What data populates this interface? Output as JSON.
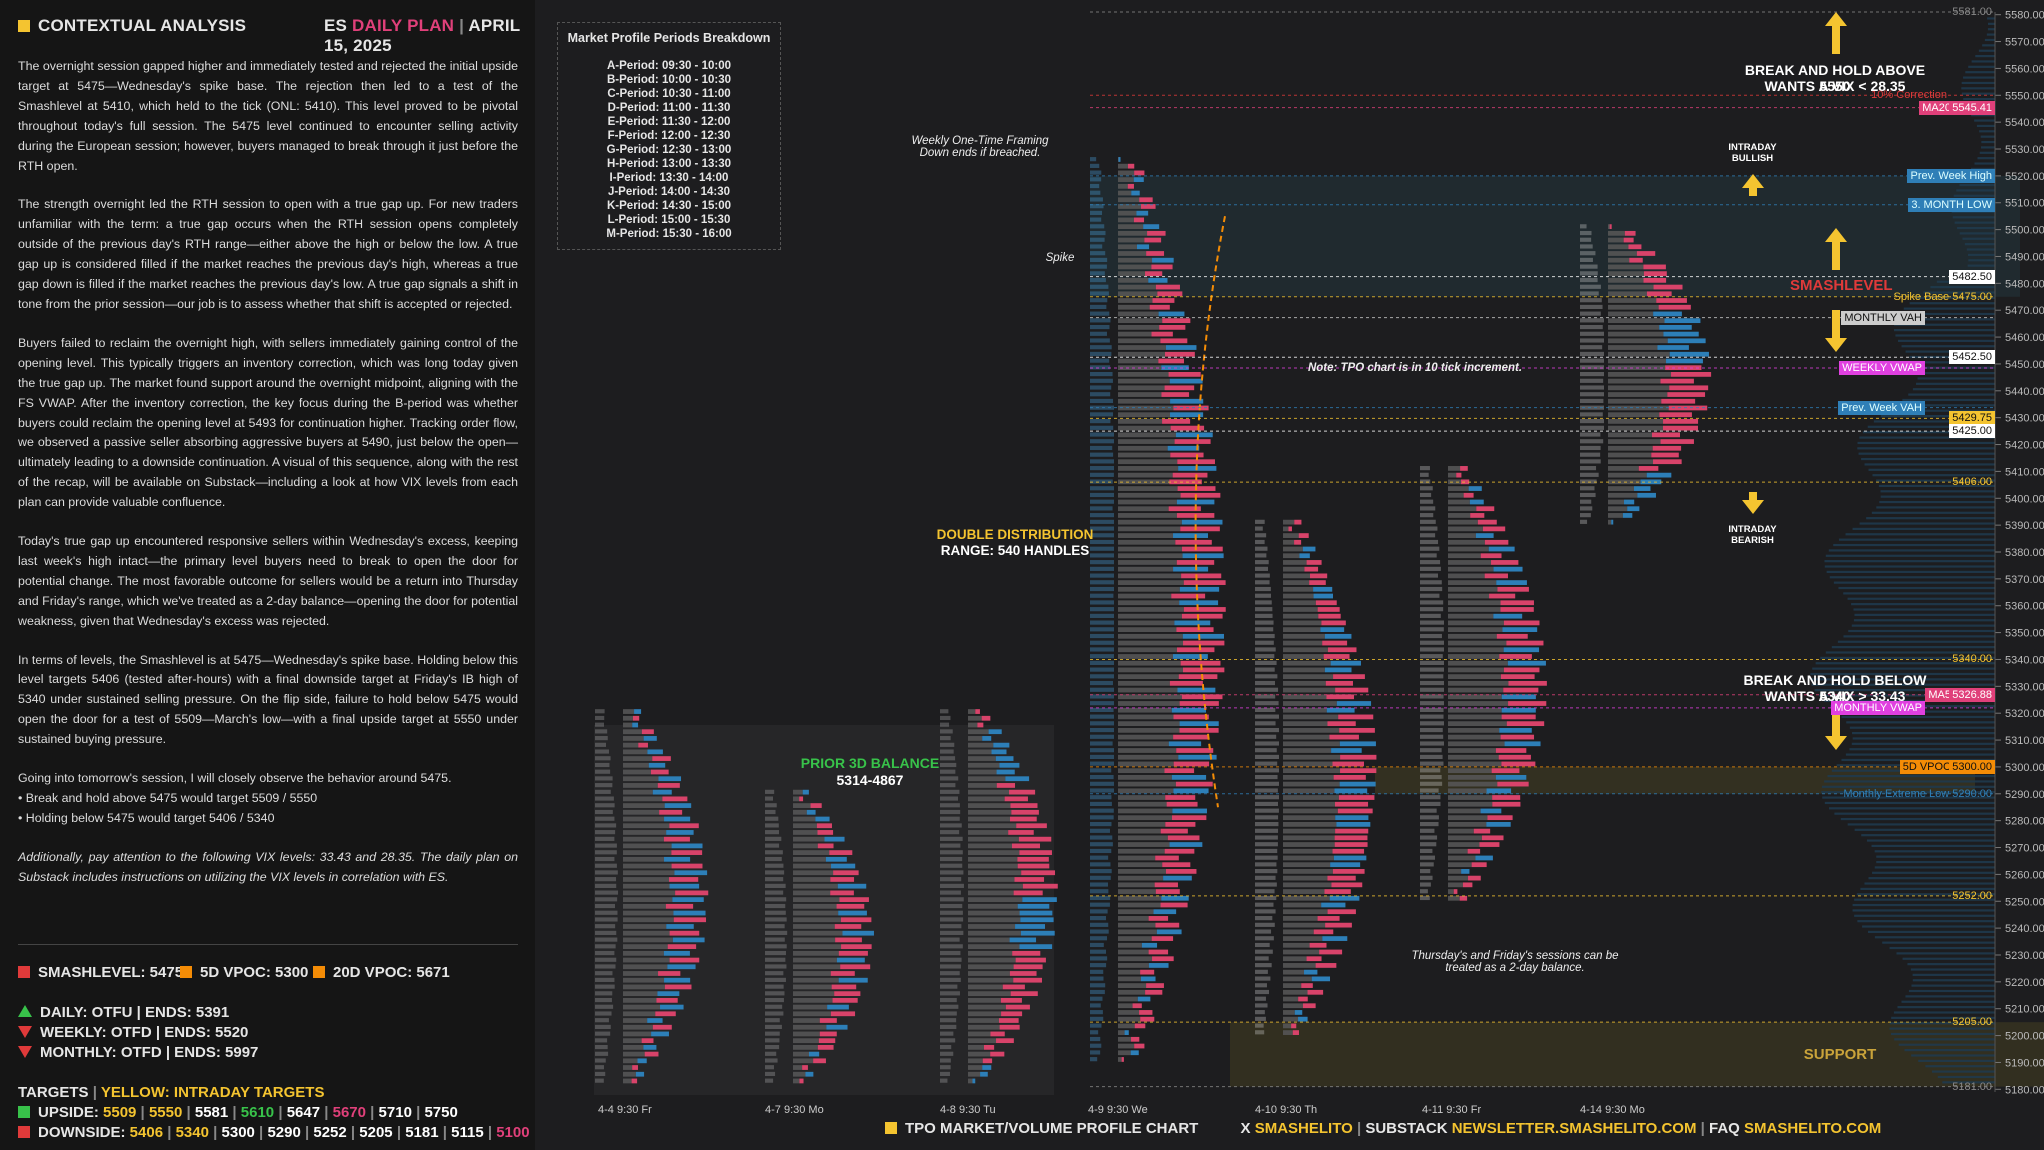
{
  "header": {
    "section_title": "CONTEXTUAL ANALYSIS",
    "symbol": "ES",
    "plan_label": "DAILY PLAN",
    "date": "APRIL 15, 2025"
  },
  "analysis": {
    "p1": "The overnight session gapped higher and immediately tested and rejected the initial upside target at 5475—Wednesday's spike base.  The rejection then led to a test of the Smashlevel at 5410, which held to the tick (ONL: 5410). This level proved to be pivotal throughout today's full session. The 5475 level continued to encounter selling activity during the European session; however, buyers managed to break through it just before the RTH open.",
    "p2": "The strength overnight led the RTH session to open with a true gap up. For new traders unfamiliar with the term: a true gap occurs when the RTH session opens completely outside of the previous day's RTH range—either above the high or below the low. A true gap up is considered filled if the market reaches the previous day's high, whereas a true gap down is filled if the market reaches the previous day's low. A true gap signals a shift in tone from the prior session—our job is to assess whether that shift is accepted or rejected.",
    "p3": "Buyers failed to reclaim the overnight high, with sellers immediately gaining control of the opening level. This typically triggers an inventory correction, which was long today given the true gap up. The market found support around the overnight midpoint, aligning with the FS VWAP. After the inventory correction, the key focus during the B-period was whether buyers could reclaim the opening level at 5493 for continuation higher. Tracking order flow, we observed a passive seller absorbing aggressive buyers at 5490, just below the open—ultimately leading to a downside continuation. A visual of this sequence, along with the rest of the recap, will be available on Substack—including a look at how VIX levels from each plan can provide valuable confluence.",
    "p4": "Today's true gap up encountered responsive sellers within Wednesday's excess, keeping last week's high intact—the primary level buyers need to break to open the door for potential change. The most favorable outcome for sellers would be a return into Thursday and Friday's range, which we've treated as a 2-day balance—opening the door for potential weakness, given that Wednesday's excess was rejected.",
    "p5": "In terms of levels, the Smashlevel is at 5475—Wednesday's spike base. Holding below this level targets 5406 (tested after-hours) with a final downside target at Friday's IB high of 5340 under sustained selling pressure. On the flip side, failure to hold below 5475 would open the door for a test of 5509—March's low—with a final upside target at 5550 under sustained buying pressure.",
    "p6": "Going into tomorrow's session, I will closely observe the behavior around 5475.",
    "b1": "• Break and hold above 5475 would target 5509 / 5550",
    "b2": "• Holding below 5475 would target 5406 / 5340",
    "p7": "Additionally, pay attention to the following VIX levels: 33.43 and 28.35. The daily plan on Substack includes instructions on utilizing the VIX levels in correlation with ES."
  },
  "levels": {
    "smashlevel": "SMASHLEVEL: 5475",
    "vpoc5d": "5D VPOC: 5300",
    "vpoc20d": "20D VPOC: 5671",
    "daily": "DAILY: OTFU  |  ENDS: 5391",
    "weekly": "WEEKLY: OTFD  |  ENDS: 5520",
    "monthly": "MONTHLY: OTFD  |  ENDS: 5997"
  },
  "targets": {
    "title": "TARGETS",
    "title_sub": "YELLOW: INTRADAY TARGETS",
    "upside_label": "UPSIDE:",
    "upside": [
      {
        "v": "5509",
        "c": "y"
      },
      {
        "v": "5550",
        "c": "y"
      },
      {
        "v": "5581",
        "c": "w"
      },
      {
        "v": "5610",
        "c": "g"
      },
      {
        "v": "5647",
        "c": "w"
      },
      {
        "v": "5670",
        "c": "pk"
      },
      {
        "v": "5710",
        "c": "w"
      },
      {
        "v": "5750",
        "c": "w"
      }
    ],
    "downside_label": "DOWNSIDE:",
    "downside": [
      {
        "v": "5406",
        "c": "y"
      },
      {
        "v": "5340",
        "c": "y"
      },
      {
        "v": "5300",
        "c": "w"
      },
      {
        "v": "5290",
        "c": "w"
      },
      {
        "v": "5252",
        "c": "w"
      },
      {
        "v": "5205",
        "c": "w"
      },
      {
        "v": "5181",
        "c": "w"
      },
      {
        "v": "5115",
        "c": "w"
      },
      {
        "v": "5100",
        "c": "pk"
      }
    ]
  },
  "periods": {
    "title": "Market Profile Periods Breakdown",
    "rows": [
      {
        "k": "A-Period:",
        "v": "09:30 - 10:00"
      },
      {
        "k": "B-Period:",
        "v": "10:00 - 10:30"
      },
      {
        "k": "C-Period:",
        "v": "10:30 - 11:00"
      },
      {
        "k": "D-Period:",
        "v": "11:00 - 11:30"
      },
      {
        "k": "E-Period:",
        "v": "11:30 - 12:00"
      },
      {
        "k": "F-Period:",
        "v": "12:00 - 12:30"
      },
      {
        "k": "G-Period:",
        "v": "12:30 - 13:00"
      },
      {
        "k": "H-Period:",
        "v": "13:00 - 13:30"
      },
      {
        "k": "I-Period:",
        "v": "13:30 - 14:00"
      },
      {
        "k": "J-Period:",
        "v": "14:00 - 14:30"
      },
      {
        "k": "K-Period:",
        "v": "14:30 - 15:00"
      },
      {
        "k": "L-Period:",
        "v": "15:00 - 15:30"
      },
      {
        "k": "M-Period:",
        "v": "15:30 - 16:00"
      }
    ]
  },
  "annotations": {
    "weekly_otf": "Weekly One-Time Framing Down ends if breached.",
    "spike": "Spike",
    "prior_balance_title": "PRIOR 3D BALANCE",
    "prior_balance_range": "5314-4867",
    "double_dist_title": "DOUBLE DISTRIBUTION",
    "double_dist_range": "RANGE: 540 HANDLES",
    "note": "Note: TPO chart is in 10 tick increment.",
    "two_day": "Thursday's and Friday's sessions can be treated as a 2-day balance.",
    "break_above": "BREAK AND HOLD ABOVE 5550",
    "break_above_vix": "WANTS A VIX < 28.35",
    "break_below": "BREAK AND HOLD BELOW 5340",
    "break_below_vix": "WANTS A VIX > 33.43",
    "intraday_bullish": "INTRADAY BULLISH",
    "intraday_bearish": "INTRADAY BEARISH",
    "smashlevel": "SMASHLEVEL",
    "support": "SUPPORT"
  },
  "chart_data": {
    "type": "table",
    "title": "",
    "y_axis": {
      "min": 5180,
      "max": 5580,
      "step": 10
    },
    "x_labels": [
      "4-4  9:30 Fr",
      "4-7  9:30 Mo",
      "4-8  9:30 Tu",
      "4-9  9:30 We",
      "4-10  9:30 Th",
      "4-11  9:30 Fr",
      "4-14  9:30 Mo"
    ],
    "levels": [
      {
        "price": 5581,
        "label": "5581.00",
        "color": "#888888"
      },
      {
        "price": 5550,
        "label": "10% Correction",
        "color": "#e03a3a"
      },
      {
        "price": 5545.41,
        "label": "MA20",
        "color": "#e0407a"
      },
      {
        "price": 5520,
        "label": "Prev. Week High",
        "color": "#2f7fb7"
      },
      {
        "price": 5509.25,
        "label": "3. MONTH LOW",
        "color": "#2f7fb7"
      },
      {
        "price": 5482.5,
        "label": "5482.50",
        "color": "#ffffff"
      },
      {
        "price": 5475,
        "label": "Spike Base  5475.00",
        "color": "#f4c430"
      },
      {
        "price": 5467.25,
        "label": "MONTHLY VAH",
        "color": "#cccccc"
      },
      {
        "price": 5452.5,
        "label": "5452.50",
        "color": "#ffffff"
      },
      {
        "price": 5448.49,
        "label": "WEEKLY VWAP",
        "color": "#e040e0"
      },
      {
        "price": 5433.75,
        "label": "Prev. Week VAH",
        "color": "#2f7fb7"
      },
      {
        "price": 5429.75,
        "label": "5429.75",
        "color": "#f4c430"
      },
      {
        "price": 5425,
        "label": "5425.00",
        "color": "#ffffff"
      },
      {
        "price": 5406,
        "label": "5406.00",
        "color": "#f4c430"
      },
      {
        "price": 5340,
        "label": "5340.00",
        "color": "#f4c430"
      },
      {
        "price": 5326.88,
        "label": "MA5",
        "color": "#e0407a"
      },
      {
        "price": 5322,
        "label": "MONTHLY VWAP",
        "color": "#e040e0"
      },
      {
        "price": 5300,
        "label": "5D VPOC",
        "color": "#f48c06"
      },
      {
        "price": 5290,
        "label": "Monthly Extreme Low  5290.00",
        "color": "#2f7fb7"
      },
      {
        "price": 5252,
        "label": "5252.00",
        "color": "#f4c430"
      },
      {
        "price": 5205,
        "label": "5205.00",
        "color": "#f4c430"
      },
      {
        "price": 5181,
        "label": "5181.00",
        "color": "#888888"
      }
    ],
    "tag_values": {
      "MA20": "5545.41",
      "3. MONTH LOW": "5509.25",
      "MONTHLY VAH": "5467.25",
      "WEEKLY VWAP": "5448.49",
      "Prev. Week VAH": "5433.75",
      "Prev. Week High": "5520.00",
      "MA5": "5326.88",
      "MONTHLY VWAP": "5322.00",
      "5D VPOC": "5300.00"
    }
  },
  "colors": {
    "yellow": "#f4c430",
    "orange": "#f48c06",
    "red": "#e03a3a",
    "green": "#38c24a",
    "blue": "#2f7fb7",
    "pink": "#e0407a",
    "magenta": "#e040e0"
  },
  "footer": {
    "tpo": "TPO MARKET/VOLUME PROFILE CHART",
    "x": "X",
    "handle": "SMASHELITO",
    "substack": "SUBSTACK",
    "newsletter": "NEWSLETTER.SMASHELITO.COM",
    "faq": "FAQ",
    "site": "SMASHELITO.COM"
  }
}
